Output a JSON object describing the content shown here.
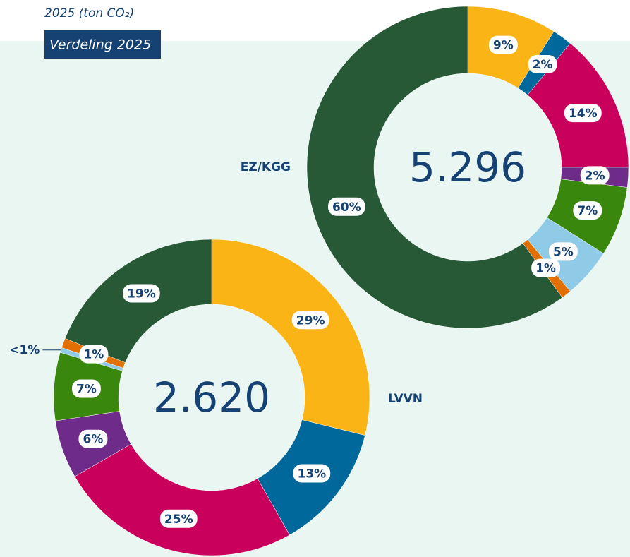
{
  "header": {
    "title": "2025 (ton CO₂)",
    "tag": "Verdeling 2025"
  },
  "chart_data": [
    {
      "type": "pie",
      "name": "EZ/KGG",
      "center_label": "5.296",
      "values": [
        9,
        2,
        14,
        2,
        7,
        5,
        1,
        60
      ],
      "value_labels": [
        "9%",
        "2%",
        "14%",
        "2%",
        "7%",
        "5%",
        "1%",
        "60%"
      ],
      "colors": [
        "#fbb415",
        "#01689b",
        "#ca005d",
        "#6f2b8a",
        "#39870c",
        "#8fcae7",
        "#e17000",
        "#275937"
      ]
    },
    {
      "type": "pie",
      "name": "LVVN",
      "center_label": "2.620",
      "values": [
        29,
        13,
        25,
        6,
        7,
        0.5,
        1,
        19
      ],
      "value_labels": [
        "29%",
        "13%",
        "25%",
        "6%",
        "7%",
        "<1%",
        "1%",
        "19%"
      ],
      "colors": [
        "#fbb415",
        "#01689b",
        "#ca005d",
        "#6f2b8a",
        "#39870c",
        "#8fcae7",
        "#e17000",
        "#275937"
      ]
    }
  ]
}
